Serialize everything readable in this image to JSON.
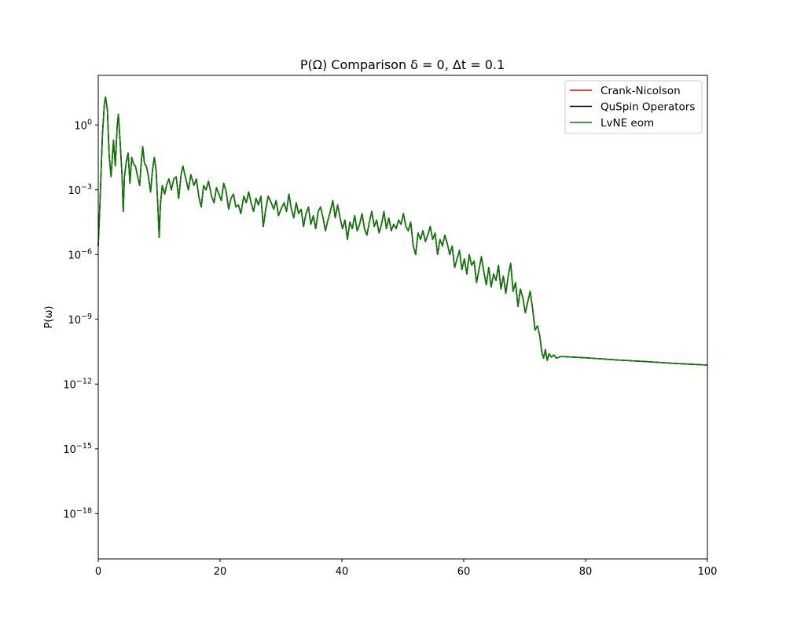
{
  "chart_data": {
    "type": "line",
    "title": "P(Ω) Comparison δ = 0, Δt = 0.1",
    "xlabel": "",
    "ylabel": "P(ω)",
    "xlim": [
      0,
      100
    ],
    "ylim_log10": [
      -20.1,
      2.3
    ],
    "y_scale": "log",
    "x_ticks": [
      "0",
      "20",
      "40",
      "60",
      "80",
      "100"
    ],
    "y_ticks": [
      {
        "base": "10",
        "exp": "0"
      },
      {
        "base": "10",
        "exp": "−3"
      },
      {
        "base": "10",
        "exp": "−6"
      },
      {
        "base": "10",
        "exp": "−9"
      },
      {
        "base": "10",
        "exp": "−12"
      },
      {
        "base": "10",
        "exp": "−15"
      },
      {
        "base": "10",
        "exp": "−18"
      }
    ],
    "grid": false,
    "legend_position": "top-right",
    "series": [
      {
        "name": "Crank-Nicolson",
        "color": "#ff0000"
      },
      {
        "name": "QuSpin Operators",
        "color": "#000000"
      },
      {
        "name": "LvNE eom",
        "color": "#008000"
      }
    ],
    "curve_points": [
      [
        0,
        -5.6
      ],
      [
        0.3,
        -3.5
      ],
      [
        0.7,
        -0.4
      ],
      [
        1.0,
        1.0
      ],
      [
        1.2,
        1.3
      ],
      [
        1.5,
        0.7
      ],
      [
        1.8,
        -1.4
      ],
      [
        2.1,
        -2.4
      ],
      [
        2.5,
        -0.7
      ],
      [
        2.8,
        -1.9
      ],
      [
        3.1,
        -0.1
      ],
      [
        3.3,
        0.5
      ],
      [
        3.6,
        -0.8
      ],
      [
        3.9,
        -2.3
      ],
      [
        4.1,
        -4.0
      ],
      [
        4.3,
        -2.4
      ],
      [
        4.6,
        -1.7
      ],
      [
        4.9,
        -1.3
      ],
      [
        5.2,
        -2.7
      ],
      [
        5.5,
        -1.5
      ],
      [
        5.8,
        -1.8
      ],
      [
        6.1,
        -1.9
      ],
      [
        6.4,
        -2.3
      ],
      [
        6.8,
        -2.8
      ],
      [
        7.1,
        -1.6
      ],
      [
        7.3,
        -1.0
      ],
      [
        7.6,
        -1.8
      ],
      [
        7.9,
        -1.9
      ],
      [
        8.2,
        -2.3
      ],
      [
        8.6,
        -3.1
      ],
      [
        8.9,
        -2.1
      ],
      [
        9.2,
        -1.5
      ],
      [
        9.5,
        -2.1
      ],
      [
        9.8,
        -3.8
      ],
      [
        10.0,
        -5.2
      ],
      [
        10.2,
        -3.7
      ],
      [
        10.5,
        -2.8
      ],
      [
        10.9,
        -3.2
      ],
      [
        11.2,
        -2.8
      ],
      [
        11.6,
        -2.5
      ],
      [
        12.0,
        -3.0
      ],
      [
        12.4,
        -2.5
      ],
      [
        12.8,
        -2.4
      ],
      [
        13.2,
        -3.4
      ],
      [
        13.6,
        -2.3
      ],
      [
        13.9,
        -1.9
      ],
      [
        14.3,
        -2.4
      ],
      [
        14.8,
        -3.0
      ],
      [
        15.2,
        -2.3
      ],
      [
        15.7,
        -2.8
      ],
      [
        16.1,
        -2.5
      ],
      [
        16.5,
        -3.3
      ],
      [
        16.9,
        -3.8
      ],
      [
        17.3,
        -2.8
      ],
      [
        17.7,
        -3.0
      ],
      [
        18.1,
        -2.6
      ],
      [
        18.6,
        -3.3
      ],
      [
        19.0,
        -3.6
      ],
      [
        19.4,
        -2.9
      ],
      [
        19.8,
        -3.2
      ],
      [
        20.2,
        -3.5
      ],
      [
        20.6,
        -2.7
      ],
      [
        21.0,
        -3.1
      ],
      [
        21.4,
        -3.9
      ],
      [
        21.8,
        -3.4
      ],
      [
        22.2,
        -3.2
      ],
      [
        22.6,
        -3.8
      ],
      [
        23.0,
        -3.7
      ],
      [
        23.4,
        -4.1
      ],
      [
        23.9,
        -3.3
      ],
      [
        24.3,
        -3.6
      ],
      [
        24.7,
        -3.1
      ],
      [
        25.1,
        -3.6
      ],
      [
        25.5,
        -4.0
      ],
      [
        25.9,
        -3.4
      ],
      [
        26.3,
        -3.7
      ],
      [
        26.7,
        -3.3
      ],
      [
        27.1,
        -4.7
      ],
      [
        27.5,
        -3.9
      ],
      [
        27.9,
        -3.3
      ],
      [
        28.4,
        -3.6
      ],
      [
        28.8,
        -3.9
      ],
      [
        29.2,
        -3.5
      ],
      [
        29.6,
        -4.2
      ],
      [
        30.0,
        -3.9
      ],
      [
        30.5,
        -3.6
      ],
      [
        30.9,
        -4.0
      ],
      [
        31.3,
        -3.2
      ],
      [
        31.7,
        -3.9
      ],
      [
        32.1,
        -4.3
      ],
      [
        32.5,
        -3.6
      ],
      [
        32.9,
        -4.1
      ],
      [
        33.3,
        -3.9
      ],
      [
        33.7,
        -4.7
      ],
      [
        34.1,
        -4.1
      ],
      [
        34.5,
        -3.8
      ],
      [
        34.9,
        -4.6
      ],
      [
        35.3,
        -4.2
      ],
      [
        35.7,
        -4.8
      ],
      [
        36.1,
        -4.0
      ],
      [
        36.5,
        -3.8
      ],
      [
        36.9,
        -4.3
      ],
      [
        37.3,
        -4.9
      ],
      [
        37.7,
        -4.4
      ],
      [
        38.1,
        -4.0
      ],
      [
        38.5,
        -3.5
      ],
      [
        38.9,
        -4.3
      ],
      [
        39.3,
        -3.7
      ],
      [
        39.7,
        -4.3
      ],
      [
        40.1,
        -4.8
      ],
      [
        40.5,
        -4.4
      ],
      [
        40.9,
        -5.3
      ],
      [
        41.3,
        -4.5
      ],
      [
        41.7,
        -4.8
      ],
      [
        42.1,
        -4.2
      ],
      [
        42.5,
        -4.9
      ],
      [
        42.9,
        -4.6
      ],
      [
        43.3,
        -4.1
      ],
      [
        43.7,
        -4.8
      ],
      [
        44.1,
        -5.1
      ],
      [
        44.5,
        -4.5
      ],
      [
        44.9,
        -4.0
      ],
      [
        45.3,
        -4.7
      ],
      [
        45.7,
        -4.4
      ],
      [
        46.1,
        -5.0
      ],
      [
        46.5,
        -4.6
      ],
      [
        46.9,
        -4.0
      ],
      [
        47.3,
        -4.8
      ],
      [
        47.7,
        -4.3
      ],
      [
        48.1,
        -4.9
      ],
      [
        48.5,
        -4.6
      ],
      [
        48.9,
        -4.8
      ],
      [
        49.3,
        -4.4
      ],
      [
        49.7,
        -4.6
      ],
      [
        50.1,
        -4.1
      ],
      [
        50.5,
        -4.7
      ],
      [
        50.9,
        -4.9
      ],
      [
        51.3,
        -4.5
      ],
      [
        51.7,
        -5.6
      ],
      [
        52.1,
        -6.0
      ],
      [
        52.5,
        -5.0
      ],
      [
        52.9,
        -5.3
      ],
      [
        53.3,
        -4.9
      ],
      [
        53.7,
        -5.4
      ],
      [
        54.1,
        -5.1
      ],
      [
        54.5,
        -4.7
      ],
      [
        54.9,
        -5.3
      ],
      [
        55.3,
        -5.0
      ],
      [
        55.7,
        -6.0
      ],
      [
        56.1,
        -5.3
      ],
      [
        56.5,
        -5.6
      ],
      [
        56.9,
        -5.1
      ],
      [
        57.3,
        -5.5
      ],
      [
        57.7,
        -6.0
      ],
      [
        58.1,
        -5.6
      ],
      [
        58.5,
        -6.6
      ],
      [
        58.9,
        -6.2
      ],
      [
        59.3,
        -5.8
      ],
      [
        59.7,
        -6.7
      ],
      [
        60.1,
        -6.2
      ],
      [
        60.5,
        -6.9
      ],
      [
        60.9,
        -6.0
      ],
      [
        61.3,
        -6.5
      ],
      [
        61.7,
        -6.3
      ],
      [
        62.1,
        -7.3
      ],
      [
        62.5,
        -6.7
      ],
      [
        62.9,
        -6.1
      ],
      [
        63.3,
        -6.8
      ],
      [
        63.7,
        -7.4
      ],
      [
        64.1,
        -6.6
      ],
      [
        64.5,
        -7.5
      ],
      [
        64.9,
        -6.9
      ],
      [
        65.3,
        -7.2
      ],
      [
        65.7,
        -6.5
      ],
      [
        66.1,
        -7.6
      ],
      [
        66.5,
        -7.0
      ],
      [
        66.9,
        -7.8
      ],
      [
        67.3,
        -7.0
      ],
      [
        67.7,
        -6.4
      ],
      [
        68.1,
        -7.7
      ],
      [
        68.5,
        -7.3
      ],
      [
        68.9,
        -8.4
      ],
      [
        69.3,
        -7.6
      ],
      [
        69.7,
        -8.0
      ],
      [
        70.1,
        -8.7
      ],
      [
        70.5,
        -8.2
      ],
      [
        70.9,
        -7.7
      ],
      [
        71.3,
        -8.5
      ],
      [
        71.7,
        -9.5
      ],
      [
        72.1,
        -9.3
      ],
      [
        72.5,
        -9.8
      ],
      [
        72.8,
        -10.5
      ],
      [
        73.1,
        -10.8
      ],
      [
        73.4,
        -10.4
      ],
      [
        73.7,
        -10.9
      ],
      [
        74.0,
        -10.6
      ],
      [
        74.4,
        -10.75
      ],
      [
        74.8,
        -10.65
      ],
      [
        75.2,
        -10.8
      ],
      [
        76,
        -10.72
      ],
      [
        80,
        -10.78
      ],
      [
        85,
        -10.88
      ],
      [
        90,
        -10.96
      ],
      [
        95,
        -11.05
      ],
      [
        100,
        -11.12
      ]
    ]
  }
}
